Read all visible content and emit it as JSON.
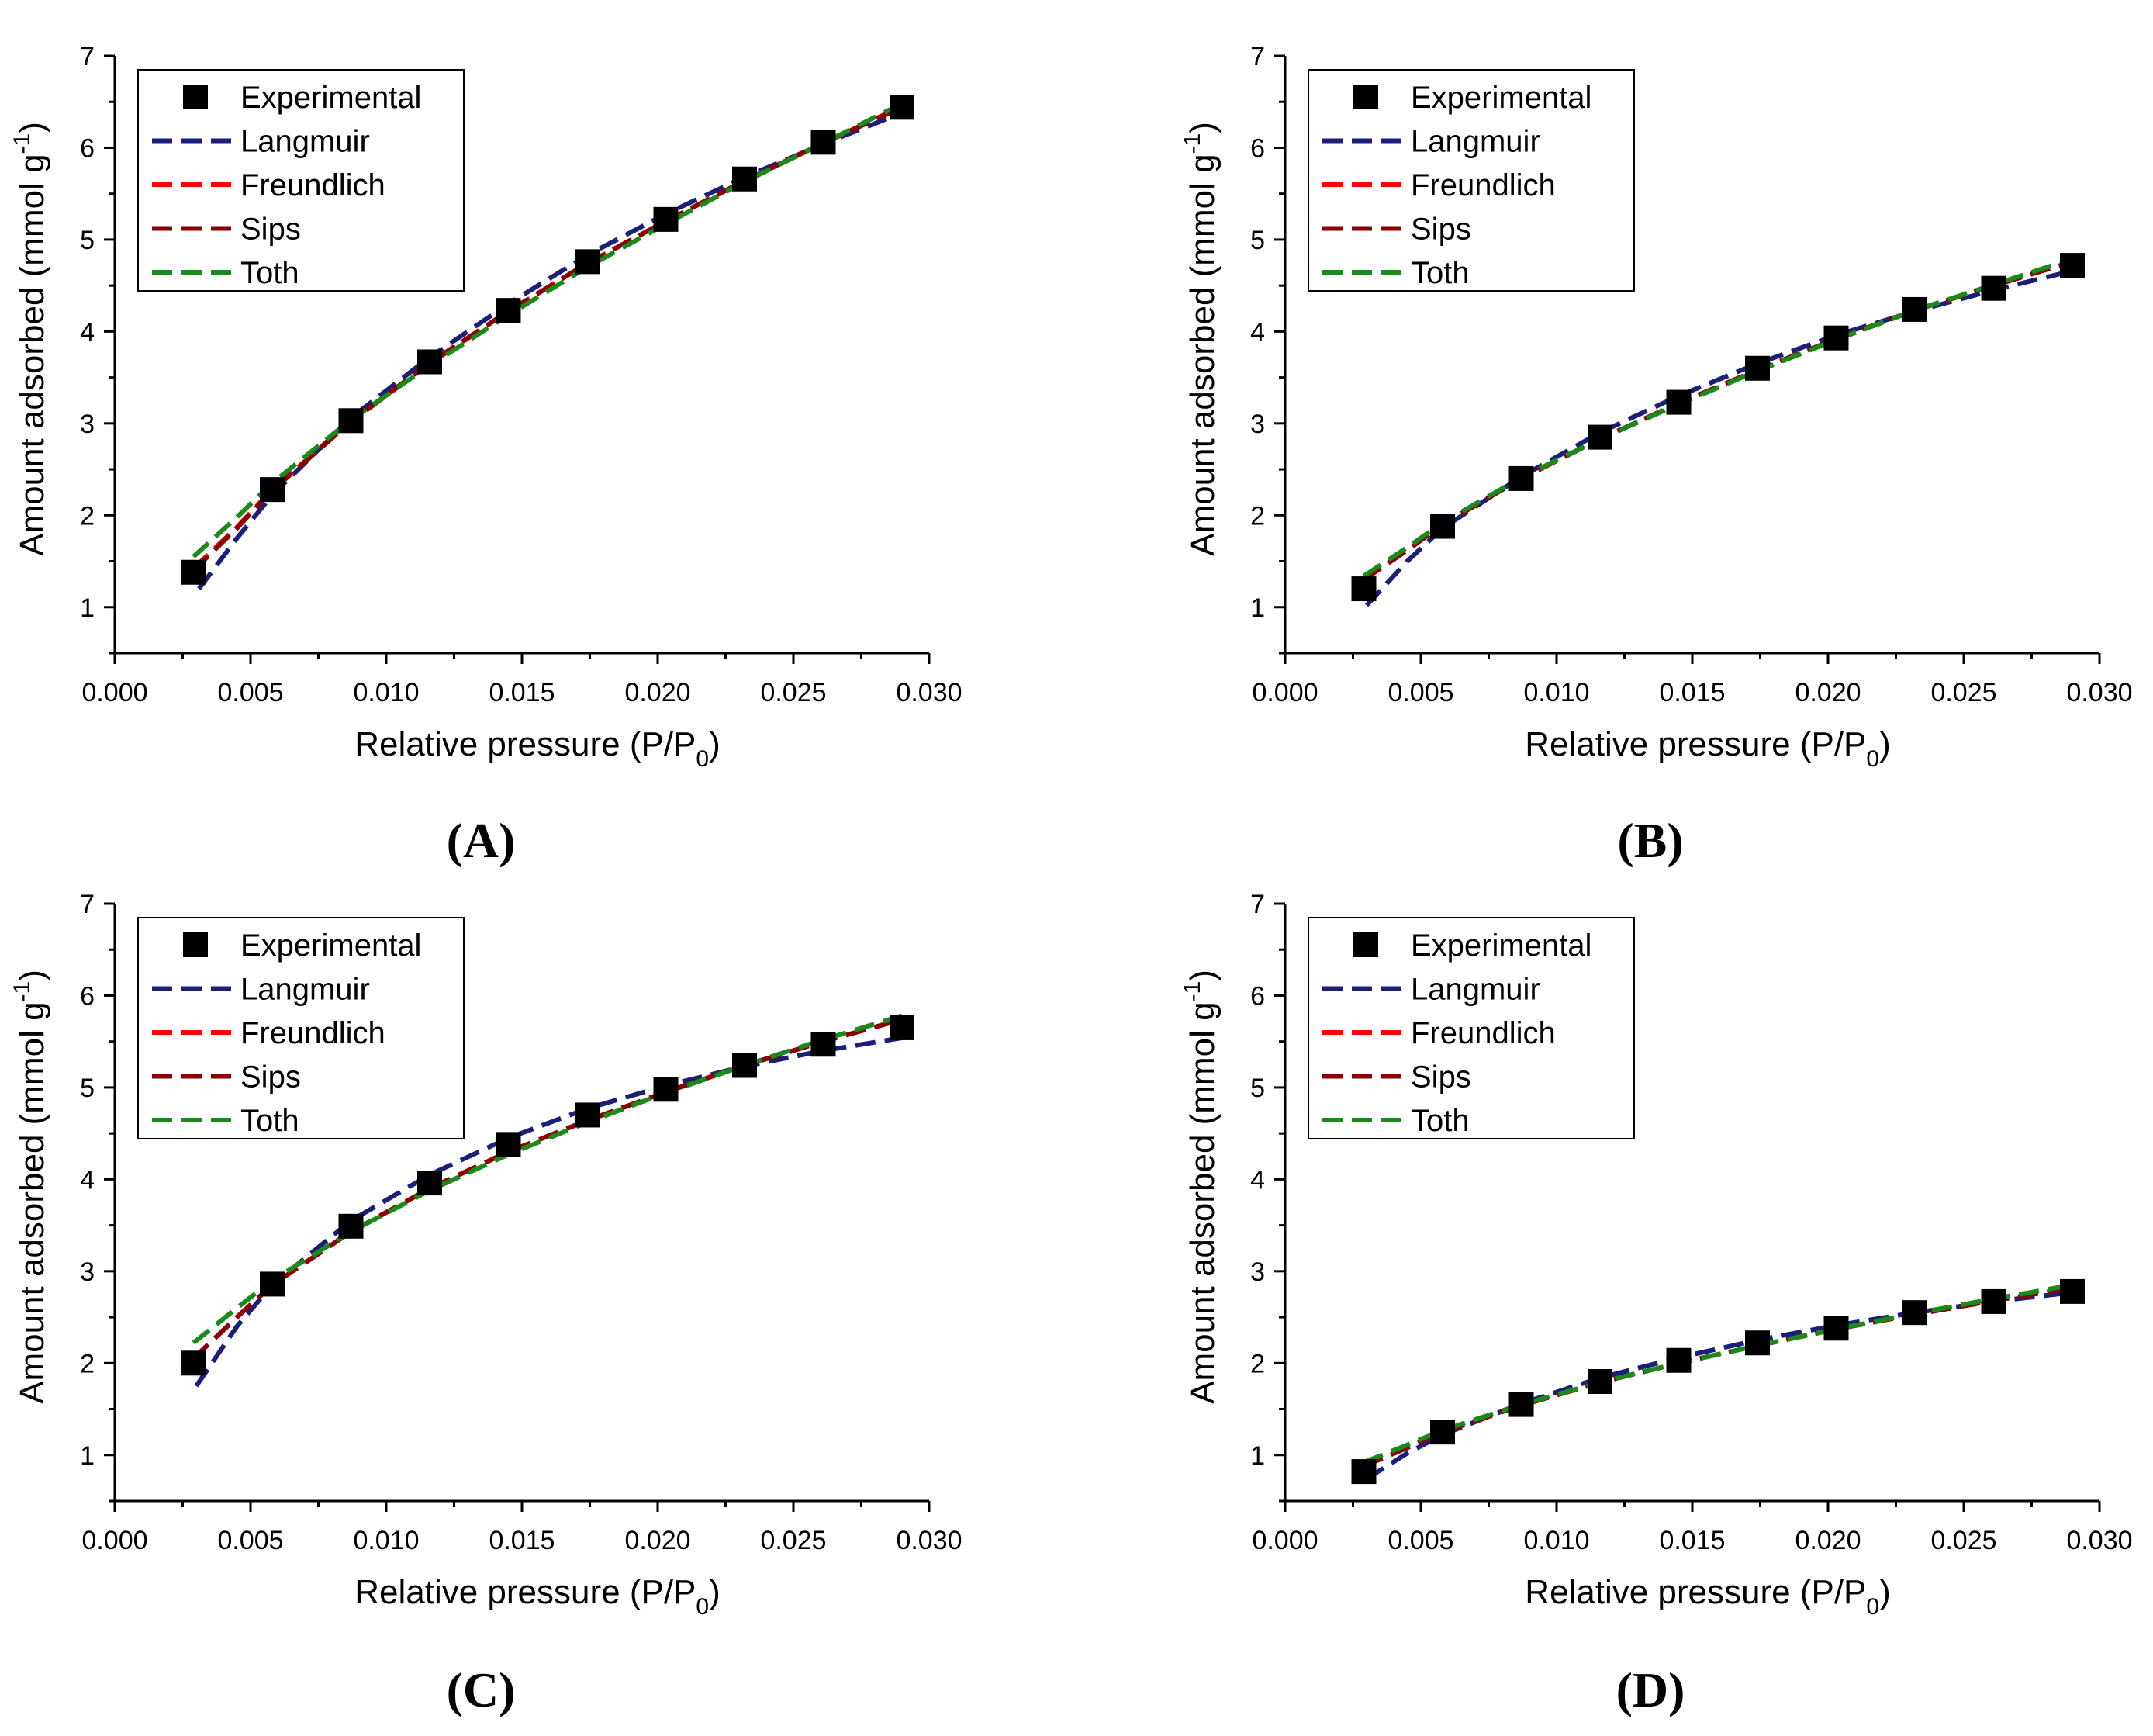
{
  "figure": {
    "panel_labels": [
      "(A)",
      "(B)",
      "(C)",
      "(D)"
    ]
  },
  "styles": {
    "Experimental": {
      "color": "#000000",
      "marker": "square"
    },
    "Langmuir": {
      "color": "#1a1f7a",
      "dash": "dashed"
    },
    "Freundlich": {
      "color": "#ff0000",
      "dash": "dashed"
    },
    "Sips": {
      "color": "#8b0000",
      "dash": "dashed"
    },
    "Toth": {
      "color": "#1a8a1a",
      "dash": "dashed"
    }
  },
  "chart_data": [
    {
      "type": "scatter",
      "panel": "(A)",
      "xlabel": "Relative pressure (P/P",
      "xlabel_sub": "0",
      "xlabel_end": ")",
      "ylabel": "Amount adsorbed (mmol g",
      "ylabel_sup": "-1",
      "ylabel_end": ")",
      "xlim": [
        0.0,
        0.03
      ],
      "ylim": [
        0.5,
        7
      ],
      "xticks": [
        "0.000",
        "0.005",
        "0.010",
        "0.015",
        "0.020",
        "0.025",
        "0.030"
      ],
      "yticks": [
        "1",
        "2",
        "3",
        "4",
        "5",
        "6",
        "7"
      ],
      "legend": [
        "Experimental",
        "Langmuir",
        "Freundlich",
        "Sips",
        "Toth"
      ],
      "experimental": {
        "x": [
          0.0029,
          0.0058,
          0.0087,
          0.0116,
          0.0145,
          0.0174,
          0.0203,
          0.0232,
          0.0261,
          0.029
        ],
        "y": [
          1.38,
          2.28,
          3.03,
          3.67,
          4.23,
          4.76,
          5.22,
          5.66,
          6.06,
          6.44
        ]
      },
      "series": [
        {
          "name": "Langmuir",
          "x": [
            0.0031,
            0.0045,
            0.0058,
            0.0087,
            0.0116,
            0.0145,
            0.0174,
            0.0203,
            0.0232,
            0.0261,
            0.029
          ],
          "y": [
            1.2,
            1.75,
            2.22,
            3.06,
            3.72,
            4.3,
            4.83,
            5.28,
            5.68,
            6.04,
            6.38
          ]
        },
        {
          "name": "Freundlich",
          "x": [
            0.0029,
            0.0045,
            0.0058,
            0.0087,
            0.0116,
            0.0145,
            0.0174,
            0.0203,
            0.0232,
            0.0261,
            0.029
          ],
          "y": [
            1.42,
            1.87,
            2.28,
            3.02,
            3.65,
            4.22,
            4.74,
            5.2,
            5.64,
            6.05,
            6.45
          ]
        },
        {
          "name": "Sips",
          "x": [
            0.0029,
            0.0045,
            0.0058,
            0.0087,
            0.0116,
            0.0145,
            0.0174,
            0.0203,
            0.0232,
            0.0261,
            0.029
          ],
          "y": [
            1.4,
            1.86,
            2.27,
            3.02,
            3.66,
            4.22,
            4.74,
            5.2,
            5.64,
            6.05,
            6.44
          ]
        },
        {
          "name": "Toth",
          "x": [
            0.0029,
            0.0045,
            0.0058,
            0.0087,
            0.0116,
            0.0145,
            0.0174,
            0.0203,
            0.0232,
            0.0261,
            0.029
          ],
          "y": [
            1.55,
            1.98,
            2.35,
            3.04,
            3.63,
            4.18,
            4.7,
            5.17,
            5.63,
            6.05,
            6.48
          ]
        }
      ]
    },
    {
      "type": "scatter",
      "panel": "(B)",
      "xlabel": "Relative pressure (P/P",
      "xlabel_sub": "0",
      "xlabel_end": ")",
      "ylabel": "Amount adsorbed (mmol g",
      "ylabel_sup": "-1",
      "ylabel_end": ")",
      "xlim": [
        0.0,
        0.03
      ],
      "ylim": [
        0.5,
        7
      ],
      "xticks": [
        "0.000",
        "0.005",
        "0.010",
        "0.015",
        "0.020",
        "0.025",
        "0.030"
      ],
      "yticks": [
        "1",
        "2",
        "3",
        "4",
        "5",
        "6",
        "7"
      ],
      "legend": [
        "Experimental",
        "Langmuir",
        "Freundlich",
        "Sips",
        "Toth"
      ],
      "experimental": {
        "x": [
          0.0029,
          0.0058,
          0.0087,
          0.0116,
          0.0145,
          0.0174,
          0.0203,
          0.0232,
          0.0261,
          0.029
        ],
        "y": [
          1.2,
          1.88,
          2.4,
          2.85,
          3.23,
          3.6,
          3.93,
          4.24,
          4.47,
          4.72
        ]
      },
      "series": [
        {
          "name": "Langmuir",
          "x": [
            0.003,
            0.0045,
            0.0058,
            0.0087,
            0.0116,
            0.0145,
            0.0174,
            0.0203,
            0.0232,
            0.0261,
            0.029
          ],
          "y": [
            1.02,
            1.5,
            1.86,
            2.42,
            2.9,
            3.3,
            3.65,
            3.96,
            4.22,
            4.45,
            4.66
          ]
        },
        {
          "name": "Freundlich",
          "x": [
            0.0029,
            0.0045,
            0.0058,
            0.0087,
            0.0116,
            0.0145,
            0.0174,
            0.0203,
            0.0232,
            0.0261,
            0.029
          ],
          "y": [
            1.3,
            1.62,
            1.9,
            2.4,
            2.83,
            3.22,
            3.58,
            3.92,
            4.23,
            4.5,
            4.76
          ]
        },
        {
          "name": "Sips",
          "x": [
            0.0029,
            0.0045,
            0.0058,
            0.0087,
            0.0116,
            0.0145,
            0.0174,
            0.0203,
            0.0232,
            0.0261,
            0.029
          ],
          "y": [
            1.3,
            1.62,
            1.9,
            2.4,
            2.83,
            3.22,
            3.58,
            3.92,
            4.23,
            4.5,
            4.76
          ]
        },
        {
          "name": "Toth",
          "x": [
            0.0029,
            0.0045,
            0.0058,
            0.0087,
            0.0116,
            0.0145,
            0.0174,
            0.0203,
            0.0232,
            0.0261,
            0.029
          ],
          "y": [
            1.34,
            1.65,
            1.92,
            2.41,
            2.83,
            3.21,
            3.57,
            3.91,
            4.23,
            4.51,
            4.79
          ]
        }
      ]
    },
    {
      "type": "scatter",
      "panel": "(C)",
      "xlabel": "Relative pressure (P/P",
      "xlabel_sub": "0",
      "xlabel_end": ")",
      "ylabel": "Amount adsorbed (mmol g",
      "ylabel_sup": "-1",
      "ylabel_end": ")",
      "xlim": [
        0.0,
        0.03
      ],
      "ylim": [
        0.5,
        7
      ],
      "xticks": [
        "0.000",
        "0.005",
        "0.010",
        "0.015",
        "0.020",
        "0.025",
        "0.030"
      ],
      "yticks": [
        "1",
        "2",
        "3",
        "4",
        "5",
        "6",
        "7"
      ],
      "legend": [
        "Experimental",
        "Langmuir",
        "Freundlich",
        "Sips",
        "Toth"
      ],
      "experimental": {
        "x": [
          0.0029,
          0.0058,
          0.0087,
          0.0116,
          0.0145,
          0.0174,
          0.0203,
          0.0232,
          0.0261,
          0.029
        ],
        "y": [
          2.0,
          2.86,
          3.49,
          3.96,
          4.38,
          4.7,
          4.98,
          5.24,
          5.47,
          5.65
        ]
      },
      "series": [
        {
          "name": "Langmuir",
          "x": [
            0.003,
            0.0045,
            0.0058,
            0.0087,
            0.0116,
            0.0145,
            0.0174,
            0.0203,
            0.0232,
            0.0261,
            0.029
          ],
          "y": [
            1.75,
            2.4,
            2.85,
            3.55,
            4.05,
            4.45,
            4.77,
            5.02,
            5.23,
            5.4,
            5.54
          ]
        },
        {
          "name": "Freundlich",
          "x": [
            0.0029,
            0.0045,
            0.0058,
            0.0087,
            0.0116,
            0.0145,
            0.0174,
            0.0203,
            0.0232,
            0.0261,
            0.029
          ],
          "y": [
            2.05,
            2.5,
            2.85,
            3.43,
            3.9,
            4.3,
            4.64,
            4.95,
            5.24,
            5.5,
            5.74
          ]
        },
        {
          "name": "Sips",
          "x": [
            0.0029,
            0.0045,
            0.0058,
            0.0087,
            0.0116,
            0.0145,
            0.0174,
            0.0203,
            0.0232,
            0.0261,
            0.029
          ],
          "y": [
            2.05,
            2.5,
            2.85,
            3.43,
            3.9,
            4.3,
            4.64,
            4.95,
            5.24,
            5.5,
            5.74
          ]
        },
        {
          "name": "Toth",
          "x": [
            0.0029,
            0.0045,
            0.0058,
            0.0087,
            0.0116,
            0.0145,
            0.0174,
            0.0203,
            0.0232,
            0.0261,
            0.029
          ],
          "y": [
            2.22,
            2.6,
            2.9,
            3.43,
            3.88,
            4.27,
            4.62,
            4.94,
            5.24,
            5.52,
            5.78
          ]
        }
      ]
    },
    {
      "type": "scatter",
      "panel": "(D)",
      "xlabel": "Relative pressure (P/P",
      "xlabel_sub": "0",
      "xlabel_end": ")",
      "ylabel": "Amount adsorbed (mmol g",
      "ylabel_sup": "-1",
      "ylabel_end": ")",
      "xlim": [
        0.0,
        0.03
      ],
      "ylim": [
        0.5,
        7
      ],
      "xticks": [
        "0.000",
        "0.005",
        "0.010",
        "0.015",
        "0.020",
        "0.025",
        "0.030"
      ],
      "yticks": [
        "1",
        "2",
        "3",
        "4",
        "5",
        "6",
        "7"
      ],
      "legend": [
        "Experimental",
        "Langmuir",
        "Freundlich",
        "Sips",
        "Toth"
      ],
      "experimental": {
        "x": [
          0.0029,
          0.0058,
          0.0087,
          0.0116,
          0.0145,
          0.0174,
          0.0203,
          0.0232,
          0.0261,
          0.029
        ],
        "y": [
          0.82,
          1.25,
          1.55,
          1.8,
          2.03,
          2.22,
          2.38,
          2.55,
          2.67,
          2.78
        ]
      },
      "series": [
        {
          "name": "Langmuir",
          "x": [
            0.003,
            0.0045,
            0.0058,
            0.0087,
            0.0116,
            0.0145,
            0.0174,
            0.0203,
            0.0232,
            0.0261,
            0.029
          ],
          "y": [
            0.74,
            1.02,
            1.22,
            1.56,
            1.84,
            2.06,
            2.25,
            2.41,
            2.55,
            2.67,
            2.77
          ]
        },
        {
          "name": "Freundlich",
          "x": [
            0.0029,
            0.0045,
            0.0058,
            0.0087,
            0.0116,
            0.0145,
            0.0174,
            0.0203,
            0.0232,
            0.0261,
            0.029
          ],
          "y": [
            0.88,
            1.08,
            1.25,
            1.54,
            1.79,
            2.0,
            2.19,
            2.37,
            2.53,
            2.68,
            2.82
          ]
        },
        {
          "name": "Sips",
          "x": [
            0.0029,
            0.0045,
            0.0058,
            0.0087,
            0.0116,
            0.0145,
            0.0174,
            0.0203,
            0.0232,
            0.0261,
            0.029
          ],
          "y": [
            0.88,
            1.08,
            1.25,
            1.54,
            1.79,
            2.0,
            2.19,
            2.37,
            2.53,
            2.68,
            2.82
          ]
        },
        {
          "name": "Toth",
          "x": [
            0.0029,
            0.0045,
            0.0058,
            0.0087,
            0.0116,
            0.0145,
            0.0174,
            0.0203,
            0.0232,
            0.0261,
            0.029
          ],
          "y": [
            0.92,
            1.11,
            1.27,
            1.55,
            1.79,
            2.0,
            2.19,
            2.37,
            2.54,
            2.7,
            2.85
          ]
        }
      ]
    }
  ]
}
